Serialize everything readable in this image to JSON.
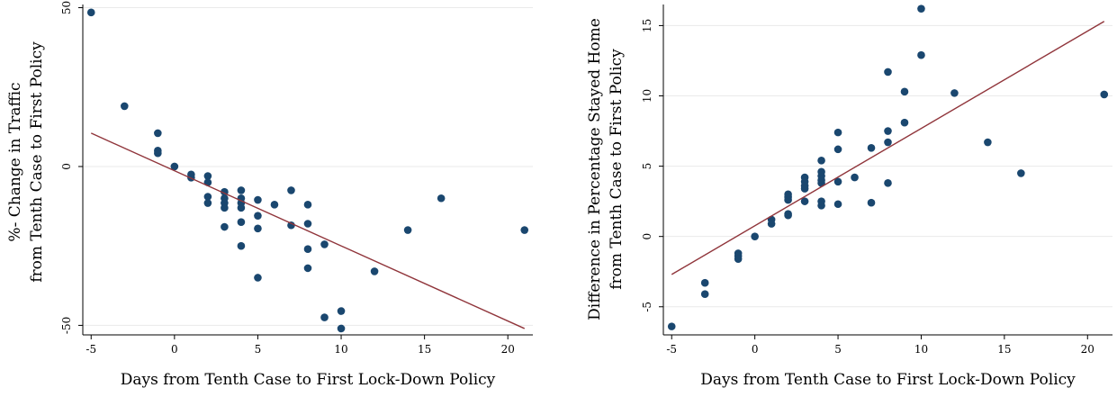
{
  "chart_data": [
    {
      "type": "scatter",
      "ylabel_lines": [
        "%- Change in Traffic",
        "from Tenth Case to First Policy"
      ],
      "xlabel": "Days from Tenth Case to First Lock-Down Policy",
      "xlim": [
        -5.5,
        21.5
      ],
      "ylim": [
        -53,
        51
      ],
      "xticks": [
        -5,
        0,
        5,
        10,
        15,
        20
      ],
      "xtick_labels": [
        "-5",
        "0",
        "5",
        "10",
        "15",
        "20"
      ],
      "yticks": [
        -50,
        0,
        50
      ],
      "ytick_labels": [
        "-50",
        "0",
        "50"
      ],
      "grid": true,
      "marker_color": "#1a476f",
      "fit_color": "#90353b",
      "fit_line": {
        "x": [
          -5,
          21
        ],
        "y": [
          10.5,
          -51
        ]
      },
      "points": [
        {
          "x": -5,
          "y": 48.5
        },
        {
          "x": -3,
          "y": 19
        },
        {
          "x": -1,
          "y": 10.5
        },
        {
          "x": -1,
          "y": 5
        },
        {
          "x": -1,
          "y": 4.2
        },
        {
          "x": 0,
          "y": 0
        },
        {
          "x": 1,
          "y": -2.5
        },
        {
          "x": 1,
          "y": -3.5
        },
        {
          "x": 2,
          "y": -3
        },
        {
          "x": 2,
          "y": -5
        },
        {
          "x": 2,
          "y": -9.5
        },
        {
          "x": 2,
          "y": -11.5
        },
        {
          "x": 3,
          "y": -8
        },
        {
          "x": 3,
          "y": -10
        },
        {
          "x": 3,
          "y": -11.5
        },
        {
          "x": 3,
          "y": -13
        },
        {
          "x": 3,
          "y": -19
        },
        {
          "x": 4,
          "y": -7.5
        },
        {
          "x": 4,
          "y": -10
        },
        {
          "x": 4,
          "y": -11.5
        },
        {
          "x": 4,
          "y": -13
        },
        {
          "x": 4,
          "y": -17.5
        },
        {
          "x": 4,
          "y": -25
        },
        {
          "x": 5,
          "y": -10.5
        },
        {
          "x": 5,
          "y": -15.5
        },
        {
          "x": 5,
          "y": -19.5
        },
        {
          "x": 5,
          "y": -35
        },
        {
          "x": 6,
          "y": -12
        },
        {
          "x": 7,
          "y": -7.5
        },
        {
          "x": 7,
          "y": -18.5
        },
        {
          "x": 8,
          "y": -12
        },
        {
          "x": 8,
          "y": -18
        },
        {
          "x": 8,
          "y": -26
        },
        {
          "x": 8,
          "y": -32
        },
        {
          "x": 9,
          "y": -24.5
        },
        {
          "x": 9,
          "y": -47.5
        },
        {
          "x": 10,
          "y": -45.5
        },
        {
          "x": 10,
          "y": -51
        },
        {
          "x": 12,
          "y": -33
        },
        {
          "x": 14,
          "y": -20
        },
        {
          "x": 16,
          "y": -10
        },
        {
          "x": 21,
          "y": -20
        }
      ]
    },
    {
      "type": "scatter",
      "ylabel_lines": [
        "Difference in Percentage Stayed Home",
        "from Tenth Case to First Policy"
      ],
      "xlabel": "Days from Tenth Case to First Lock-Down Policy",
      "xlim": [
        -5.5,
        21.5
      ],
      "ylim": [
        -7,
        16.5
      ],
      "xticks": [
        -5,
        0,
        5,
        10,
        15,
        20
      ],
      "xtick_labels": [
        "-5",
        "0",
        "5",
        "10",
        "15",
        "20"
      ],
      "yticks": [
        -5,
        0,
        5,
        10,
        15
      ],
      "ytick_labels": [
        "-5",
        "0",
        "5",
        "10",
        "15"
      ],
      "grid": true,
      "marker_color": "#1a476f",
      "fit_color": "#90353b",
      "fit_line": {
        "x": [
          -5,
          21
        ],
        "y": [
          -2.7,
          15.3
        ]
      },
      "points": [
        {
          "x": -5,
          "y": -6.4
        },
        {
          "x": -3,
          "y": -3.3
        },
        {
          "x": -3,
          "y": -4.1
        },
        {
          "x": -1,
          "y": -1.2
        },
        {
          "x": -1,
          "y": -1.4
        },
        {
          "x": -1,
          "y": -1.6
        },
        {
          "x": 0,
          "y": 0
        },
        {
          "x": 1,
          "y": 1.2
        },
        {
          "x": 1,
          "y": 0.9
        },
        {
          "x": 2,
          "y": 1.5
        },
        {
          "x": 2,
          "y": 1.6
        },
        {
          "x": 2,
          "y": 2.6
        },
        {
          "x": 2,
          "y": 2.8
        },
        {
          "x": 2,
          "y": 3.0
        },
        {
          "x": 3,
          "y": 2.5
        },
        {
          "x": 3,
          "y": 3.4
        },
        {
          "x": 3,
          "y": 3.6
        },
        {
          "x": 3,
          "y": 3.9
        },
        {
          "x": 3,
          "y": 4.2
        },
        {
          "x": 4,
          "y": 2.2
        },
        {
          "x": 4,
          "y": 2.5
        },
        {
          "x": 4,
          "y": 3.8
        },
        {
          "x": 4,
          "y": 4.0
        },
        {
          "x": 4,
          "y": 4.3
        },
        {
          "x": 4,
          "y": 4.6
        },
        {
          "x": 4,
          "y": 5.4
        },
        {
          "x": 5,
          "y": 2.3
        },
        {
          "x": 5,
          "y": 3.9
        },
        {
          "x": 5,
          "y": 6.2
        },
        {
          "x": 5,
          "y": 7.4
        },
        {
          "x": 6,
          "y": 4.2
        },
        {
          "x": 7,
          "y": 2.4
        },
        {
          "x": 7,
          "y": 6.3
        },
        {
          "x": 8,
          "y": 3.8
        },
        {
          "x": 8,
          "y": 6.7
        },
        {
          "x": 8,
          "y": 7.5
        },
        {
          "x": 8,
          "y": 11.7
        },
        {
          "x": 9,
          "y": 8.1
        },
        {
          "x": 9,
          "y": 10.3
        },
        {
          "x": 10,
          "y": 12.9
        },
        {
          "x": 10,
          "y": 16.2
        },
        {
          "x": 12,
          "y": 10.2
        },
        {
          "x": 14,
          "y": 6.7
        },
        {
          "x": 16,
          "y": 4.5
        },
        {
          "x": 21,
          "y": 10.1
        }
      ]
    }
  ]
}
